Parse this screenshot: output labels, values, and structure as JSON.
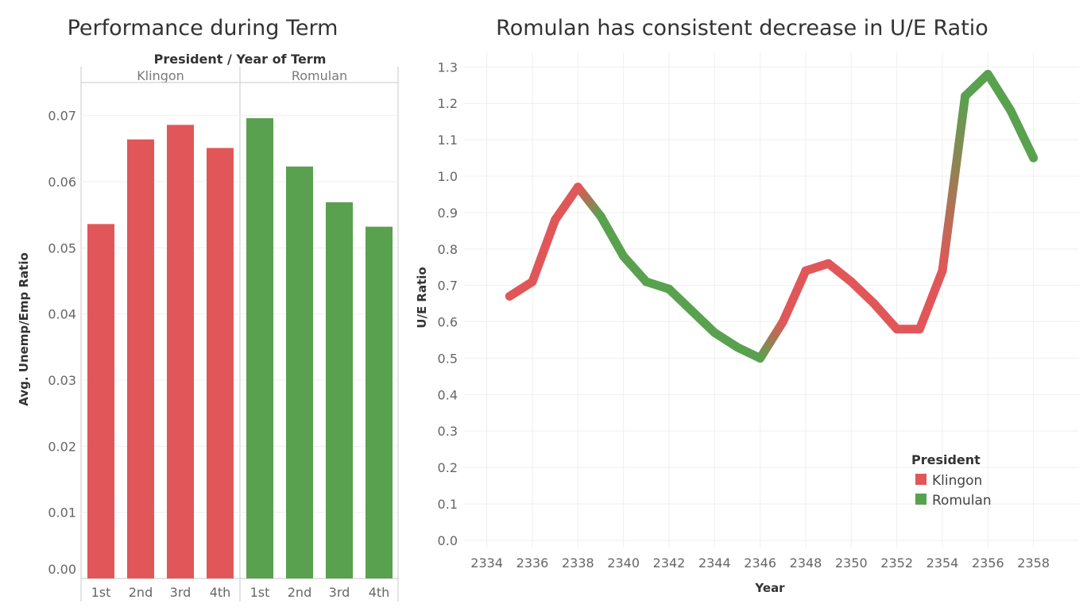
{
  "colors": {
    "Klingon": "#e15759",
    "Romulan": "#59a14f"
  },
  "bar_chart": {
    "title": "Performance during Term",
    "header": "President  /  Year of Term",
    "ylabel": "Avg. Unemp/Emp Ratio",
    "ylim": [
      0,
      0.075
    ],
    "yticks": [
      "0.00",
      "0.01",
      "0.02",
      "0.03",
      "0.04",
      "0.05",
      "0.06",
      "0.07"
    ]
  },
  "line_chart": {
    "title": "Romulan has consistent decrease in U/E Ratio",
    "xlabel": "Year",
    "ylabel": "U/E Ratio",
    "yticks": [
      "0.0",
      "0.1",
      "0.2",
      "0.3",
      "0.4",
      "0.5",
      "0.6",
      "0.7",
      "0.8",
      "0.9",
      "1.0",
      "1.1",
      "1.2",
      "1.3"
    ],
    "xticks": [
      "2334",
      "2336",
      "2338",
      "2340",
      "2342",
      "2344",
      "2346",
      "2348",
      "2350",
      "2352",
      "2354",
      "2356",
      "2358"
    ]
  },
  "legend": {
    "title": "President",
    "items": [
      "Klingon",
      "Romulan"
    ]
  },
  "chart_data": [
    {
      "type": "bar",
      "title": "Performance during Term",
      "xlabel": "President / Year of Term",
      "ylabel": "Avg. Unemp/Emp Ratio",
      "ylim": [
        0,
        0.075
      ],
      "panes": [
        {
          "name": "Klingon",
          "categories": [
            "1st",
            "2nd",
            "3rd",
            "4th"
          ],
          "values": [
            0.0536,
            0.0664,
            0.0686,
            0.0651
          ]
        },
        {
          "name": "Romulan",
          "categories": [
            "1st",
            "2nd",
            "3rd",
            "4th"
          ],
          "values": [
            0.0696,
            0.0623,
            0.0569,
            0.0532
          ]
        }
      ],
      "grid": true
    },
    {
      "type": "line",
      "title": "Romulan has consistent decrease in U/E Ratio",
      "xlabel": "Year",
      "ylabel": "U/E Ratio",
      "xlim": [
        2333,
        2360
      ],
      "ylim": [
        -0.02,
        1.34
      ],
      "x": [
        2335,
        2336,
        2337,
        2338,
        2339,
        2340,
        2341,
        2342,
        2343,
        2344,
        2345,
        2346,
        2347,
        2348,
        2349,
        2350,
        2351,
        2352,
        2353,
        2354,
        2355,
        2356,
        2357,
        2358
      ],
      "y": [
        0.67,
        0.71,
        0.88,
        0.97,
        0.89,
        0.78,
        0.71,
        0.69,
        0.63,
        0.57,
        0.53,
        0.5,
        0.6,
        0.74,
        0.76,
        0.71,
        0.65,
        0.58,
        0.58,
        0.74,
        1.22,
        1.28,
        1.18,
        1.05
      ],
      "president": [
        "Klingon",
        "Klingon",
        "Klingon",
        "Klingon",
        "Romulan",
        "Romulan",
        "Romulan",
        "Romulan",
        "Romulan",
        "Romulan",
        "Romulan",
        "Romulan",
        "Klingon",
        "Klingon",
        "Klingon",
        "Klingon",
        "Klingon",
        "Klingon",
        "Klingon",
        "Klingon",
        "Romulan",
        "Romulan",
        "Romulan",
        "Romulan"
      ],
      "legend": "bottom-right",
      "grid": true
    }
  ]
}
